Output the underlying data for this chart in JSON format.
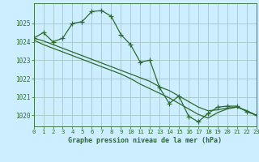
{
  "title": "Graphe pression niveau de la mer (hPa)",
  "background_color": "#cceeff",
  "grid_color": "#aacccc",
  "line_color": "#2d6a2d",
  "xlim": [
    0,
    23
  ],
  "ylim": [
    1019.4,
    1026.1
  ],
  "yticks": [
    1020,
    1021,
    1022,
    1023,
    1024,
    1025
  ],
  "xticks": [
    0,
    1,
    2,
    3,
    4,
    5,
    6,
    7,
    8,
    9,
    10,
    11,
    12,
    13,
    14,
    15,
    16,
    17,
    18,
    19,
    20,
    21,
    22,
    23
  ],
  "series": [
    {
      "x": [
        0,
        1,
        2,
        3,
        4,
        5,
        6,
        7,
        8,
        9,
        10,
        11,
        12,
        13,
        14,
        15,
        16,
        17,
        18,
        19,
        20,
        21,
        22,
        23
      ],
      "y": [
        1024.2,
        1024.5,
        1024.0,
        1024.2,
        1025.0,
        1025.1,
        1025.65,
        1025.7,
        1025.4,
        1024.4,
        1023.85,
        1022.9,
        1023.0,
        1021.5,
        1020.65,
        1021.05,
        1019.95,
        1019.65,
        1020.1,
        1020.45,
        1020.5,
        1020.5,
        1020.2,
        1020.0
      ],
      "marker": true
    },
    {
      "x": [
        0,
        1,
        2,
        3,
        4,
        5,
        6,
        7,
        8,
        9,
        10,
        11,
        12,
        13,
        14,
        15,
        16,
        17,
        18,
        19,
        20,
        21,
        22,
        23
      ],
      "y": [
        1024.2,
        1024.05,
        1023.85,
        1023.65,
        1023.45,
        1023.25,
        1023.05,
        1022.85,
        1022.65,
        1022.45,
        1022.25,
        1022.05,
        1021.85,
        1021.55,
        1021.35,
        1021.05,
        1020.75,
        1020.45,
        1020.25,
        1020.3,
        1020.4,
        1020.45,
        1020.25,
        1020.0
      ],
      "marker": false
    },
    {
      "x": [
        0,
        1,
        2,
        3,
        4,
        5,
        6,
        7,
        8,
        9,
        10,
        11,
        12,
        13,
        14,
        15,
        16,
        17,
        18,
        19,
        20,
        21,
        22,
        23
      ],
      "y": [
        1024.1,
        1023.85,
        1023.65,
        1023.45,
        1023.25,
        1023.05,
        1022.85,
        1022.65,
        1022.45,
        1022.25,
        1022.0,
        1021.7,
        1021.45,
        1021.2,
        1020.95,
        1020.65,
        1020.35,
        1020.05,
        1019.85,
        1020.15,
        1020.35,
        1020.45,
        1020.25,
        1020.0
      ],
      "marker": false
    }
  ]
}
